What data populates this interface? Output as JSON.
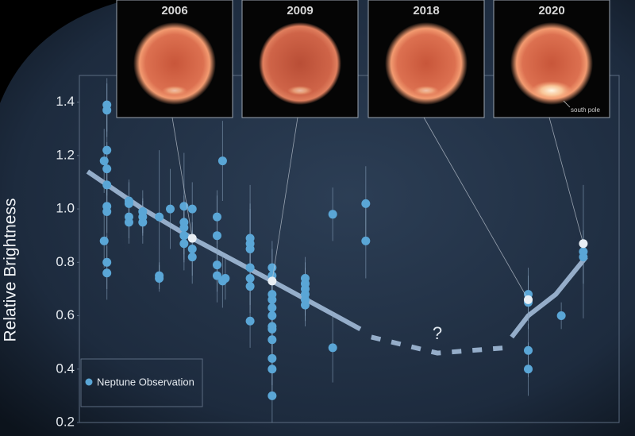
{
  "chart_data": {
    "type": "scatter",
    "y_label": "Relative Brightness",
    "xlim": [
      2001.9,
      2021.5
    ],
    "ylim": [
      0.2,
      1.5
    ],
    "yticks": [
      0.2,
      0.4,
      0.6,
      0.8,
      {
        "value": 1,
        "label": "1.0"
      },
      1.2,
      1.4
    ],
    "legend_position": "lower left",
    "series": [
      {
        "name": "Neptune Observation",
        "color": "#5aa6d6",
        "x": [
          2002.8,
          2002.8,
          2002.9,
          2002.9,
          2002.9,
          2002.9,
          2002.9,
          2002.9,
          2002.9,
          2002.9,
          2002.9,
          2003.7,
          2003.7,
          2003.7,
          2003.7,
          2004.2,
          2004.2,
          2004.2,
          2004.8,
          2004.8,
          2004.8,
          2005.2,
          2005.7,
          2005.7,
          2005.7,
          2005.7,
          2005.7,
          2006.0,
          2006.0,
          2006.0,
          2006.9,
          2006.9,
          2006.9,
          2006.9,
          2007.1,
          2007.1,
          2007.2,
          2008.1,
          2008.1,
          2008.1,
          2008.1,
          2008.1,
          2008.1,
          2008.1,
          2008.9,
          2008.9,
          2008.9,
          2008.9,
          2008.9,
          2008.9,
          2008.9,
          2008.9,
          2008.9,
          2008.9,
          2008.9,
          2008.9,
          2010.1,
          2010.1,
          2010.1,
          2010.1,
          2010.1,
          2010.1,
          2011.1,
          2011.1,
          2012.3,
          2012.3,
          2018.2,
          2018.2,
          2018.2,
          2018.2,
          2019.4,
          2020.2,
          2020.2
        ],
        "values": [
          1.18,
          0.88,
          1.39,
          1.37,
          1.22,
          1.15,
          1.09,
          1.01,
          0.99,
          0.8,
          0.76,
          1.03,
          1.02,
          0.97,
          0.95,
          0.99,
          0.97,
          0.95,
          0.97,
          0.75,
          0.74,
          1.0,
          1.01,
          0.95,
          0.93,
          0.9,
          0.87,
          1.0,
          0.85,
          0.82,
          0.97,
          0.9,
          0.79,
          0.75,
          1.18,
          0.73,
          0.74,
          0.89,
          0.87,
          0.85,
          0.78,
          0.74,
          0.71,
          0.58,
          0.78,
          0.75,
          0.68,
          0.66,
          0.63,
          0.6,
          0.56,
          0.55,
          0.51,
          0.44,
          0.4,
          0.3,
          0.74,
          0.72,
          0.7,
          0.68,
          0.66,
          0.64,
          0.98,
          0.48,
          1.02,
          0.88,
          0.68,
          0.65,
          0.47,
          0.4,
          0.6,
          0.84,
          0.82
        ],
        "errors": [
          0.12,
          0.1,
          0.1,
          0.1,
          0.15,
          0.1,
          0.1,
          0.1,
          0.1,
          0.1,
          0.1,
          0.08,
          0.08,
          0.08,
          0.08,
          0.08,
          0.07,
          0.08,
          0.25,
          0.05,
          0.05,
          0.15,
          0.2,
          0.1,
          0.1,
          0.1,
          0.1,
          0.1,
          0.1,
          0.1,
          0.1,
          0.15,
          0.1,
          0.1,
          0.15,
          0.1,
          0.08,
          0.2,
          0.15,
          0.15,
          0.1,
          0.1,
          0.1,
          0.1,
          0.1,
          0.1,
          0.1,
          0.1,
          0.1,
          0.1,
          0.1,
          0.1,
          0.1,
          0.1,
          0.1,
          0.1,
          0.08,
          0.08,
          0.08,
          0.08,
          0.08,
          0.08,
          0.1,
          0.13,
          0.14,
          0.14,
          0.1,
          0.1,
          0.1,
          0.1,
          0.05,
          0.25,
          0.1
        ]
      }
    ],
    "trend": [
      {
        "style": "solid",
        "x": [
          2002.2,
          2004.2,
          2006.0,
          2008.9,
          2012.1
        ],
        "values": [
          1.14,
          1.0,
          0.89,
          0.73,
          0.55
        ]
      },
      {
        "style": "dashed",
        "x": [
          2012.5,
          2014.9,
          2017.4
        ],
        "values": [
          0.52,
          0.46,
          0.48
        ]
      },
      {
        "style": "solid",
        "x": [
          2017.6,
          2018.2,
          2019.2,
          2020.3
        ],
        "values": [
          0.52,
          0.6,
          0.68,
          0.82
        ]
      }
    ],
    "trend_color": "#a9c3e0",
    "gap_label": {
      "text": "?",
      "x": 2014.9,
      "y": 0.53
    },
    "annotations": [
      {
        "text": "2006",
        "x": 2006.0,
        "y": 0.89
      },
      {
        "text": "2009",
        "x": 2008.9,
        "y": 0.73
      },
      {
        "text": "2018",
        "x": 2018.2,
        "y": 0.66
      },
      {
        "text": "2020",
        "x": 2020.2,
        "y": 0.87
      }
    ],
    "south_pole_label": "south pole"
  }
}
